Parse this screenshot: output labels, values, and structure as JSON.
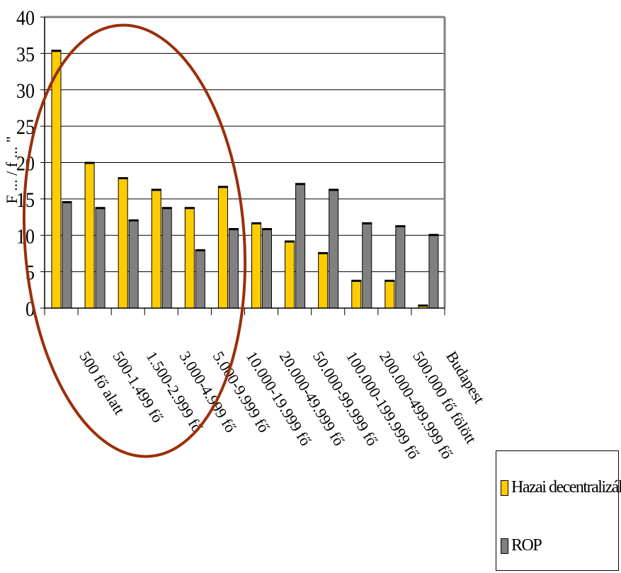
{
  "chart_data": {
    "type": "bar",
    "title": "",
    "xlabel": "",
    "ylabel": "F ... / f ... \"",
    "ylim": [
      0,
      40
    ],
    "yticks": [
      "0",
      "5",
      "10",
      "15",
      "20",
      "25",
      "30",
      "35",
      "40"
    ],
    "categories": [
      "500 fő alatt",
      "500-1.499 fő",
      "1.500-2.999 fő",
      "3.000-4.999 fő",
      "5.000-9.999 fő",
      "10.000-19.999 fő",
      "20.000-49.999 fő",
      "50.000-99.999 fő",
      "100.000-199.999 fő",
      "200.000-499.999 fő",
      "500.000 fő fölött",
      "Budapest"
    ],
    "series": [
      {
        "name": "Hazai decentralizált",
        "color": "#FFCC00",
        "values": [
          35.4,
          20,
          17.9,
          16.3,
          13.8,
          16.7,
          11.7,
          9.2,
          7.6,
          3.8,
          3.8,
          0.4
        ]
      },
      {
        "name": "ROP",
        "color": "#808080",
        "values": [
          14.6,
          13.8,
          12.1,
          13.8,
          8,
          10.9,
          10.9,
          17.1,
          16.3,
          11.7,
          11.3,
          10.1
        ]
      }
    ],
    "grid": true,
    "legend_position": "bottom-right"
  }
}
